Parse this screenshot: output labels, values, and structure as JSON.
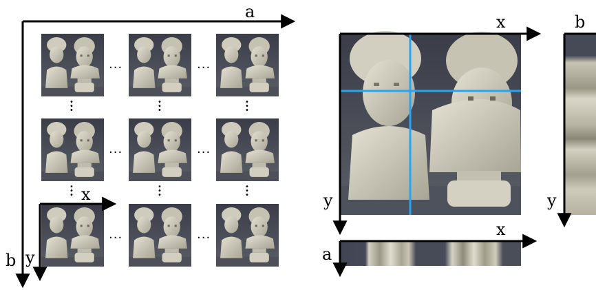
{
  "left_panel": {
    "outer_axis_horizontal": "a",
    "outer_axis_vertical": "b",
    "inner_axis_horizontal": "x",
    "inner_axis_vertical": "y",
    "grid_rows": 3,
    "grid_cols": 3,
    "ellipsis": "..."
  },
  "middle_panel": {
    "axis_horizontal": "x",
    "axis_vertical": "y",
    "guide_line_color": "#2aa3f0"
  },
  "epi_strip_a": {
    "axis_horizontal": "x",
    "axis_vertical": "a"
  },
  "right_panel": {
    "axis_horizontal": "b",
    "axis_vertical": "y"
  }
}
